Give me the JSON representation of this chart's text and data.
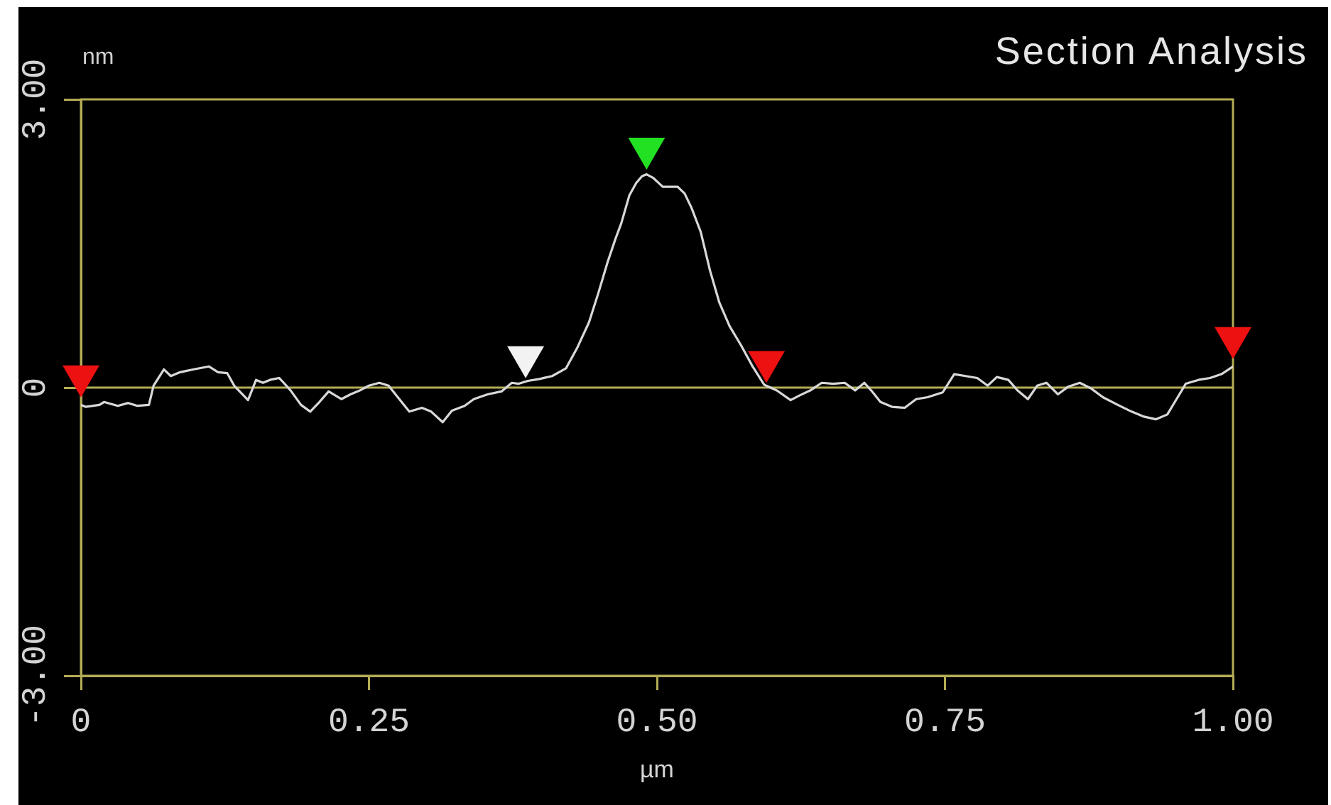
{
  "chart_data": {
    "type": "line",
    "title": "Section Analysis",
    "xlabel": "µm",
    "ylabel": "nm",
    "xlim": [
      0,
      1
    ],
    "xticks": [
      0,
      0.25,
      {
        "value": 0.5,
        "label": "0.50"
      },
      0.75,
      {
        "value": 1,
        "label": "1.00"
      }
    ],
    "ylim": [
      -3,
      3
    ],
    "yticks": [
      {
        "value": -3,
        "label": "-3.00"
      },
      0,
      {
        "value": 3,
        "label": "3.00"
      }
    ],
    "ref_lines": [
      {
        "axis": "y",
        "value": 0,
        "color": "#b4ac55"
      }
    ],
    "series": [
      {
        "color": "#d8d8d8",
        "x": [
          0,
          0.004,
          0.016,
          0.02,
          0.032,
          0.041,
          0.049,
          0.059,
          0.063,
          0.072,
          0.078,
          0.086,
          0.098,
          0.111,
          0.119,
          0.127,
          0.133,
          0.141,
          0.145,
          0.152,
          0.158,
          0.164,
          0.172,
          0.176,
          0.182,
          0.191,
          0.199,
          0.207,
          0.215,
          0.226,
          0.234,
          0.242,
          0.25,
          0.259,
          0.267,
          0.275,
          0.285,
          0.296,
          0.304,
          0.314,
          0.322,
          0.333,
          0.341,
          0.353,
          0.365,
          0.374,
          0.38,
          0.388,
          0.398,
          0.409,
          0.421,
          0.431,
          0.441,
          0.449,
          0.457,
          0.464,
          0.469,
          0.476,
          0.482,
          0.487,
          0.491,
          0.497,
          0.505,
          0.518,
          0.524,
          0.53,
          0.538,
          0.546,
          0.554,
          0.563,
          0.573,
          0.583,
          0.593,
          0.604,
          0.616,
          0.624,
          0.633,
          0.643,
          0.653,
          0.663,
          0.672,
          0.68,
          0.686,
          0.694,
          0.704,
          0.715,
          0.725,
          0.735,
          0.748,
          0.758,
          0.768,
          0.778,
          0.787,
          0.795,
          0.805,
          0.813,
          0.822,
          0.83,
          0.838,
          0.848,
          0.857,
          0.867,
          0.877,
          0.887,
          0.9,
          0.912,
          0.922,
          0.933,
          0.943,
          0.951,
          0.959,
          0.97,
          0.98,
          0.99,
          1
        ],
        "values": [
          -0.18,
          -0.2,
          -0.18,
          -0.15,
          -0.19,
          -0.16,
          -0.19,
          -0.18,
          0.02,
          0.19,
          0.12,
          0.16,
          0.19,
          0.22,
          0.16,
          0.15,
          0.02,
          -0.08,
          -0.13,
          0.08,
          0.05,
          0.08,
          0.1,
          0.05,
          -0.03,
          -0.18,
          -0.25,
          -0.15,
          -0.04,
          -0.12,
          -0.07,
          -0.03,
          0.02,
          0.05,
          0.02,
          -0.1,
          -0.25,
          -0.21,
          -0.25,
          -0.36,
          -0.24,
          -0.19,
          -0.12,
          -0.07,
          -0.04,
          0.05,
          0.04,
          0.07,
          0.09,
          0.12,
          0.2,
          0.42,
          0.68,
          0.98,
          1.3,
          1.55,
          1.71,
          2.0,
          2.13,
          2.2,
          2.22,
          2.18,
          2.09,
          2.09,
          2.02,
          1.87,
          1.62,
          1.22,
          0.89,
          0.64,
          0.44,
          0.22,
          0.03,
          -0.03,
          -0.13,
          -0.08,
          -0.03,
          0.05,
          0.04,
          0.05,
          -0.03,
          0.05,
          -0.03,
          -0.15,
          -0.2,
          -0.21,
          -0.12,
          -0.1,
          -0.05,
          0.14,
          0.12,
          0.1,
          0.02,
          0.11,
          0.08,
          -0.03,
          -0.12,
          0.02,
          0.05,
          -0.07,
          0.01,
          0.05,
          -0.01,
          -0.1,
          -0.18,
          -0.25,
          -0.3,
          -0.33,
          -0.28,
          -0.12,
          0.04,
          0.08,
          0.1,
          0.14,
          0.22
        ]
      },
      {
        "type": "scatter",
        "marker": "triangle",
        "x": [
          0,
          0.386,
          0.491,
          0.595,
          1
        ],
        "values": [
          0.12,
          0.32,
          2.49,
          0.27,
          0.52
        ],
        "colors": [
          "#ee1111",
          "#f2f2f2",
          "#22e022",
          "#ee1111",
          "#ee1111"
        ]
      }
    ]
  }
}
